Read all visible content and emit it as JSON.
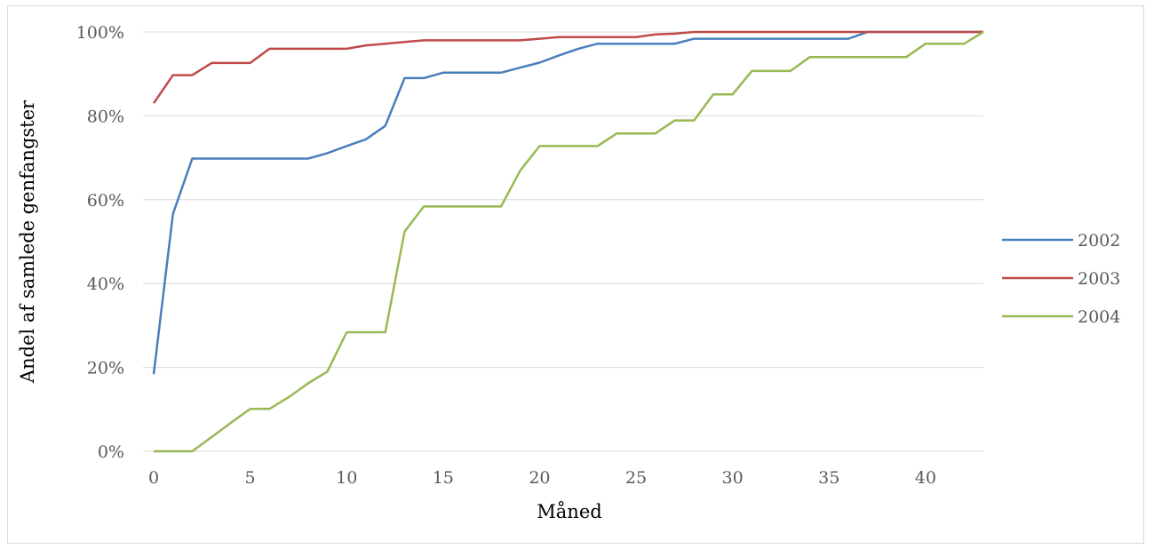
{
  "chart_data": {
    "type": "line",
    "xlabel": "Måned",
    "ylabel": "Andel af samlede genfangster",
    "xlim": [
      0,
      43
    ],
    "ylim": [
      0,
      100
    ],
    "x_ticks": [
      0,
      5,
      10,
      15,
      20,
      25,
      30,
      35,
      40
    ],
    "y_ticks": [
      0,
      20,
      40,
      60,
      80,
      100
    ],
    "y_tick_labels": [
      "0%",
      "20%",
      "40%",
      "60%",
      "80%",
      "100%"
    ],
    "grid": "horizontal",
    "legend_position": "right",
    "x": [
      0,
      1,
      2,
      3,
      4,
      5,
      6,
      7,
      8,
      9,
      10,
      11,
      12,
      13,
      14,
      15,
      16,
      17,
      18,
      19,
      20,
      21,
      22,
      23,
      24,
      25,
      26,
      27,
      28,
      29,
      30,
      31,
      32,
      33,
      34,
      35,
      36,
      37,
      38,
      39,
      40,
      41,
      42,
      43
    ],
    "series": [
      {
        "name": "2002",
        "color": "#4a7ebb",
        "values": [
          18.4,
          56.6,
          69.8,
          69.8,
          69.8,
          69.8,
          69.8,
          69.8,
          69.8,
          71.1,
          72.8,
          74.4,
          77.6,
          89.0,
          89.0,
          90.3,
          90.3,
          90.3,
          90.3,
          91.5,
          92.7,
          94.4,
          96.0,
          97.2,
          97.2,
          97.2,
          97.2,
          97.2,
          98.4,
          98.4,
          98.4,
          98.4,
          98.4,
          98.4,
          98.4,
          98.4,
          98.4,
          100,
          100,
          100,
          100,
          100,
          100,
          100
        ]
      },
      {
        "name": "2003",
        "color": "#be4b48",
        "values": [
          83.0,
          89.7,
          89.7,
          92.6,
          92.6,
          92.6,
          96.0,
          96.0,
          96.0,
          96.0,
          96.0,
          96.8,
          97.2,
          97.6,
          98.0,
          98.0,
          98.0,
          98.0,
          98.0,
          98.0,
          98.4,
          98.8,
          98.8,
          98.8,
          98.8,
          98.8,
          99.4,
          99.6,
          100,
          100,
          100,
          100,
          100,
          100,
          100,
          100,
          100,
          100,
          100,
          100,
          100,
          100,
          100,
          100
        ]
      },
      {
        "name": "2004",
        "color": "#98b954",
        "values": [
          0,
          0,
          0,
          3.4,
          6.8,
          10.1,
          10.1,
          12.9,
          16.2,
          19.0,
          28.4,
          28.4,
          28.4,
          52.4,
          58.4,
          58.4,
          58.4,
          58.4,
          58.4,
          67.0,
          72.8,
          72.8,
          72.8,
          72.8,
          75.8,
          75.8,
          75.8,
          78.9,
          78.9,
          85.1,
          85.1,
          90.7,
          90.7,
          90.7,
          94.0,
          94.0,
          94.0,
          94.0,
          94.0,
          94.0,
          97.2,
          97.2,
          97.2,
          100
        ]
      }
    ]
  }
}
